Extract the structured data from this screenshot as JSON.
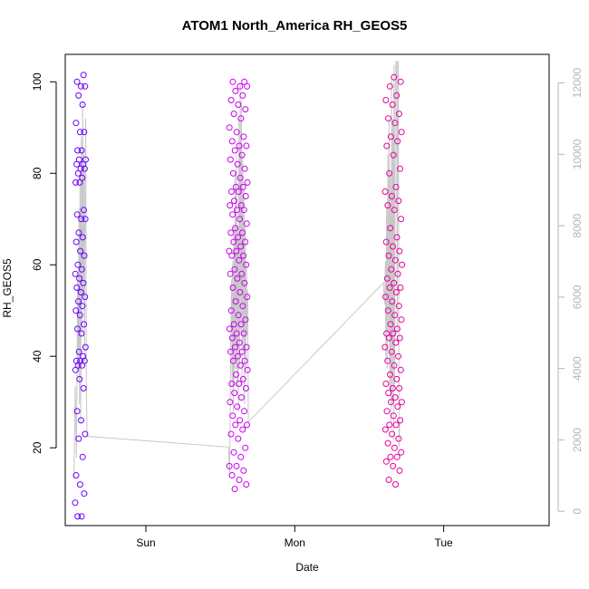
{
  "chart_data": {
    "type": "scatter",
    "title": "ATOM1 North_America RH_GEOS5",
    "xlabel": "Date",
    "ylabel": "RH_GEOS5",
    "x_ticks": [
      "Sun",
      "Mon",
      "Tue"
    ],
    "x_tick_hours": [
      24,
      48,
      72
    ],
    "xlim_hours": [
      11,
      89
    ],
    "ylim": [
      3,
      106
    ],
    "y_ticks": [
      20,
      40,
      60,
      80,
      100
    ],
    "y2_ticks": [
      0,
      2000,
      4000,
      6000,
      8000,
      10000,
      12000
    ],
    "y2lim": [
      -400,
      12800
    ],
    "colors": {
      "cluster_a": "#6a00ff",
      "cluster_b": "#cc00ee",
      "cluster_c": "#e800a0",
      "altitude_line": "#c8c8c8",
      "axis": "#000000",
      "axis2": "#b4b4b4"
    },
    "series": [
      {
        "hour_range": [
          12.6,
          14.3
        ],
        "values": [
          8,
          5,
          5,
          10,
          12,
          14,
          18,
          22,
          23,
          26,
          28,
          33,
          35,
          37,
          38,
          38,
          39,
          39,
          39,
          40,
          41,
          42,
          45,
          46,
          47,
          49,
          50,
          51,
          52,
          53,
          54,
          55,
          56,
          57,
          58,
          59,
          60,
          62,
          63,
          65,
          66,
          67,
          70,
          70,
          71,
          72,
          78,
          78,
          79,
          80,
          81,
          81,
          82,
          82,
          83,
          83,
          85,
          85,
          89,
          89,
          91,
          95,
          97,
          99,
          99,
          100,
          101.5
        ]
      },
      {
        "hour_range": [
          37.4,
          40.4
        ],
        "values": [
          11,
          12,
          13,
          14,
          15,
          16,
          16,
          18,
          19,
          20,
          22,
          23,
          24,
          25,
          25,
          26,
          27,
          28,
          29,
          30,
          31,
          32,
          33,
          34,
          34,
          35,
          36,
          37,
          38,
          39,
          39,
          40,
          41,
          41,
          42,
          42,
          43,
          44,
          45,
          45,
          46,
          47,
          47,
          48,
          49,
          50,
          51,
          52,
          53,
          54,
          55,
          56,
          57,
          58,
          58,
          59,
          60,
          61,
          62,
          62,
          63,
          63,
          64,
          65,
          65,
          66,
          67,
          67,
          68,
          69,
          70,
          71,
          72,
          72,
          73,
          73,
          74,
          75,
          76,
          76,
          77,
          77,
          78,
          79,
          80,
          81,
          82,
          83,
          84,
          85,
          86,
          86,
          87,
          88,
          89,
          90,
          92,
          93,
          94,
          95,
          96,
          97,
          98,
          99,
          99,
          100,
          100
        ]
      },
      {
        "hour_range": [
          62.5,
          65.3
        ],
        "values": [
          12,
          13,
          15,
          16,
          17,
          18,
          18,
          19,
          20,
          21,
          22,
          23,
          24,
          25,
          25,
          26,
          27,
          28,
          29,
          30,
          30,
          31,
          32,
          33,
          33,
          34,
          35,
          36,
          37,
          38,
          39,
          40,
          41,
          42,
          43,
          44,
          44,
          45,
          45,
          46,
          47,
          48,
          49,
          50,
          51,
          52,
          53,
          54,
          55,
          55,
          56,
          57,
          58,
          59,
          60,
          61,
          62,
          63,
          64,
          65,
          66,
          68,
          70,
          72,
          73,
          74,
          75,
          76,
          77,
          80,
          81,
          84,
          86,
          87,
          88,
          89,
          91,
          92,
          93,
          95,
          96,
          97,
          99,
          100,
          101
        ]
      }
    ],
    "altitude_line": {
      "axis": "right",
      "points": [
        [
          12.4,
          900
        ],
        [
          12.6,
          3500
        ],
        [
          12.8,
          1500
        ],
        [
          13.0,
          6500
        ],
        [
          13.1,
          4000
        ],
        [
          13.2,
          8500
        ],
        [
          13.3,
          3000
        ],
        [
          13.4,
          9500
        ],
        [
          13.5,
          2500
        ],
        [
          13.6,
          10500
        ],
        [
          13.7,
          5000
        ],
        [
          13.8,
          11500
        ],
        [
          13.9,
          6000
        ],
        [
          14.0,
          10000
        ],
        [
          14.1,
          4000
        ],
        [
          14.2,
          9000
        ],
        [
          14.3,
          11000
        ],
        [
          14.4,
          3500
        ],
        [
          14.5,
          2200
        ],
        [
          14.5,
          2100
        ],
        [
          37.3,
          1800
        ],
        [
          37.5,
          1000
        ],
        [
          37.6,
          3000
        ],
        [
          37.7,
          5000
        ],
        [
          37.8,
          6500
        ],
        [
          37.9,
          3500
        ],
        [
          38.0,
          7000
        ],
        [
          38.1,
          2800
        ],
        [
          38.2,
          8000
        ],
        [
          38.3,
          3500
        ],
        [
          38.4,
          9500
        ],
        [
          38.5,
          4000
        ],
        [
          38.6,
          10000
        ],
        [
          38.7,
          3500
        ],
        [
          38.8,
          8000
        ],
        [
          38.9,
          2800
        ],
        [
          39.0,
          11000
        ],
        [
          39.1,
          4000
        ],
        [
          39.2,
          12000
        ],
        [
          39.3,
          5000
        ],
        [
          39.4,
          11500
        ],
        [
          39.5,
          3500
        ],
        [
          39.6,
          10000
        ],
        [
          39.7,
          4500
        ],
        [
          39.8,
          9000
        ],
        [
          39.9,
          3000
        ],
        [
          40.0,
          8000
        ],
        [
          40.1,
          4000
        ],
        [
          40.2,
          7000
        ],
        [
          40.3,
          5000
        ],
        [
          40.4,
          6200
        ],
        [
          40.5,
          2600
        ],
        [
          40.5,
          2500
        ],
        [
          62.3,
          6400
        ],
        [
          62.5,
          5800
        ],
        [
          62.6,
          7000
        ],
        [
          62.7,
          4200
        ],
        [
          62.8,
          8500
        ],
        [
          62.9,
          4000
        ],
        [
          63.0,
          10000
        ],
        [
          63.1,
          5000
        ],
        [
          63.2,
          11000
        ],
        [
          63.3,
          3500
        ],
        [
          63.4,
          9500
        ],
        [
          63.5,
          2500
        ],
        [
          63.6,
          12200
        ],
        [
          63.7,
          3000
        ],
        [
          63.8,
          11000
        ],
        [
          63.9,
          2000
        ],
        [
          64.0,
          12500
        ],
        [
          64.1,
          3500
        ],
        [
          64.2,
          11500
        ],
        [
          64.3,
          12600
        ],
        [
          64.4,
          12600
        ],
        [
          64.5,
          5000
        ],
        [
          64.6,
          12600
        ],
        [
          64.7,
          12600
        ],
        [
          64.8,
          1800
        ],
        [
          64.9,
          2500
        ]
      ]
    }
  }
}
